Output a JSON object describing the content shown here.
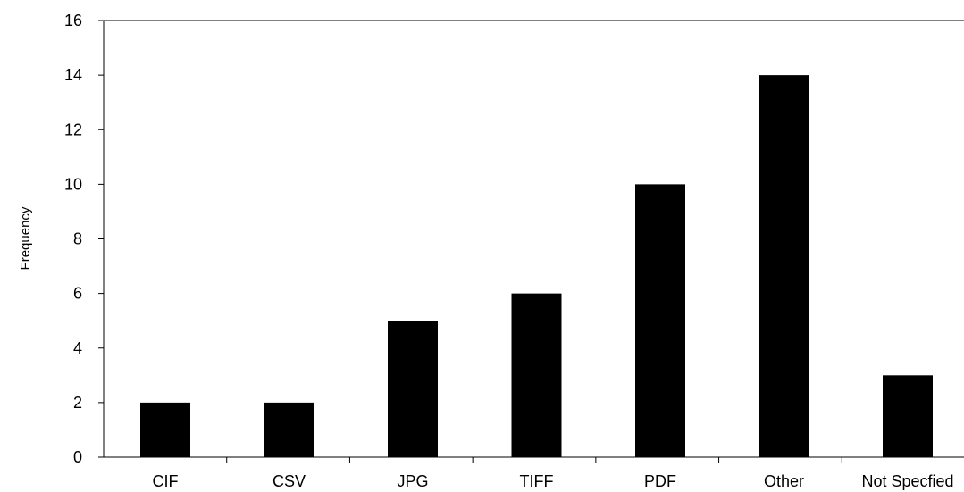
{
  "chart_data": {
    "type": "bar",
    "title": "",
    "xlabel": "",
    "ylabel": "Frequency",
    "categories": [
      "CIF",
      "CSV",
      "JPG",
      "TIFF",
      "PDF",
      "Other",
      "Not Specfied"
    ],
    "values": [
      2,
      2,
      5,
      6,
      10,
      14,
      3
    ],
    "ylim": [
      0,
      16
    ],
    "yticks": [
      0,
      2,
      4,
      6,
      8,
      10,
      12,
      14,
      16
    ],
    "ytick_labels": [
      "0",
      "2",
      "4",
      "6",
      "8",
      "10",
      "12",
      "14",
      "16"
    ],
    "grid": false,
    "legend": "none",
    "bar_color": "#000000",
    "axis_color": "#000000"
  }
}
